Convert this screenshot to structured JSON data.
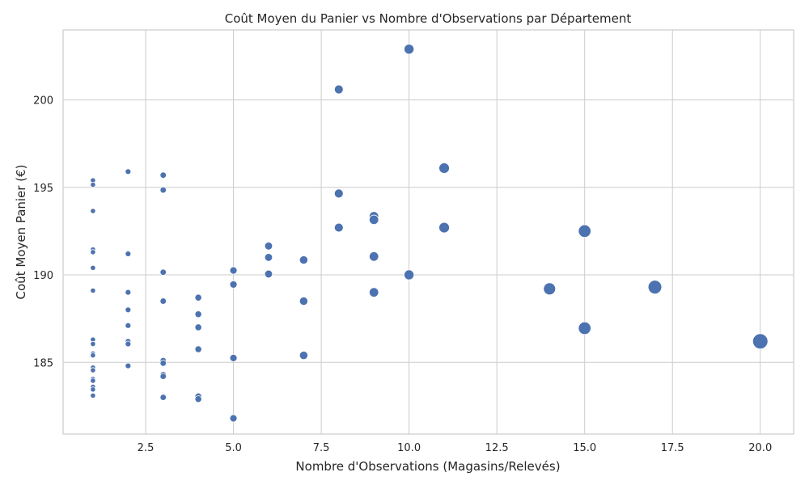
{
  "chart_data": {
    "type": "scatter",
    "title": "Coût Moyen du Panier vs Nombre d'Observations par Département",
    "xlabel": "Nombre d'Observations (Magasins/Relevés)",
    "ylabel": "Coût Moyen Panier (€)",
    "xlim": [
      0.15,
      20.95
    ],
    "ylim": [
      180.9,
      204.0
    ],
    "xticks": [
      2.5,
      5.0,
      7.5,
      10.0,
      12.5,
      15.0,
      17.5,
      20.0
    ],
    "xtick_labels": [
      "2.5",
      "5.0",
      "7.5",
      "10.0",
      "12.5",
      "15.0",
      "17.5",
      "20.0"
    ],
    "yticks": [
      185,
      190,
      195,
      200
    ],
    "ytick_labels": [
      "185",
      "190",
      "195",
      "200"
    ],
    "grid": true,
    "legend": false,
    "marker_size_encodes": "x",
    "point_color": "#4c72b0",
    "points": [
      {
        "x": 1,
        "y": 195.4
      },
      {
        "x": 1,
        "y": 195.15
      },
      {
        "x": 1,
        "y": 193.65
      },
      {
        "x": 1,
        "y": 191.45
      },
      {
        "x": 1,
        "y": 191.3
      },
      {
        "x": 1,
        "y": 190.4
      },
      {
        "x": 1,
        "y": 189.1
      },
      {
        "x": 1,
        "y": 186.3
      },
      {
        "x": 1,
        "y": 186.05
      },
      {
        "x": 1,
        "y": 185.5
      },
      {
        "x": 1,
        "y": 185.4
      },
      {
        "x": 1,
        "y": 184.7
      },
      {
        "x": 1,
        "y": 184.55
      },
      {
        "x": 1,
        "y": 184.05
      },
      {
        "x": 1,
        "y": 183.95
      },
      {
        "x": 1,
        "y": 183.6
      },
      {
        "x": 1,
        "y": 183.45
      },
      {
        "x": 1,
        "y": 183.1
      },
      {
        "x": 2,
        "y": 195.9
      },
      {
        "x": 2,
        "y": 191.2
      },
      {
        "x": 2,
        "y": 189.0
      },
      {
        "x": 2,
        "y": 188.0
      },
      {
        "x": 2,
        "y": 187.1
      },
      {
        "x": 2,
        "y": 186.2
      },
      {
        "x": 2,
        "y": 186.05
      },
      {
        "x": 2,
        "y": 184.8
      },
      {
        "x": 3,
        "y": 195.7
      },
      {
        "x": 3,
        "y": 194.85
      },
      {
        "x": 3,
        "y": 190.15
      },
      {
        "x": 3,
        "y": 188.5
      },
      {
        "x": 3,
        "y": 185.1
      },
      {
        "x": 3,
        "y": 184.95
      },
      {
        "x": 3,
        "y": 184.3
      },
      {
        "x": 3,
        "y": 184.2
      },
      {
        "x": 3,
        "y": 183.0
      },
      {
        "x": 4,
        "y": 188.7
      },
      {
        "x": 4,
        "y": 187.75
      },
      {
        "x": 4,
        "y": 187.0
      },
      {
        "x": 4,
        "y": 185.75
      },
      {
        "x": 4,
        "y": 183.05
      },
      {
        "x": 4,
        "y": 182.9
      },
      {
        "x": 5,
        "y": 190.25
      },
      {
        "x": 5,
        "y": 189.45
      },
      {
        "x": 5,
        "y": 185.25
      },
      {
        "x": 5,
        "y": 181.8
      },
      {
        "x": 6,
        "y": 191.65
      },
      {
        "x": 6,
        "y": 191.0
      },
      {
        "x": 6,
        "y": 190.05
      },
      {
        "x": 7,
        "y": 190.85
      },
      {
        "x": 7,
        "y": 188.5
      },
      {
        "x": 7,
        "y": 185.4
      },
      {
        "x": 8,
        "y": 200.6
      },
      {
        "x": 8,
        "y": 194.65
      },
      {
        "x": 8,
        "y": 192.7
      },
      {
        "x": 9,
        "y": 193.35
      },
      {
        "x": 9,
        "y": 193.15
      },
      {
        "x": 9,
        "y": 191.05
      },
      {
        "x": 9,
        "y": 189.0
      },
      {
        "x": 10,
        "y": 202.9
      },
      {
        "x": 10,
        "y": 190.0
      },
      {
        "x": 11,
        "y": 196.1
      },
      {
        "x": 11,
        "y": 192.7
      },
      {
        "x": 14,
        "y": 189.2
      },
      {
        "x": 15,
        "y": 192.5
      },
      {
        "x": 15,
        "y": 186.95
      },
      {
        "x": 17,
        "y": 189.3
      },
      {
        "x": 20,
        "y": 186.2
      }
    ]
  }
}
